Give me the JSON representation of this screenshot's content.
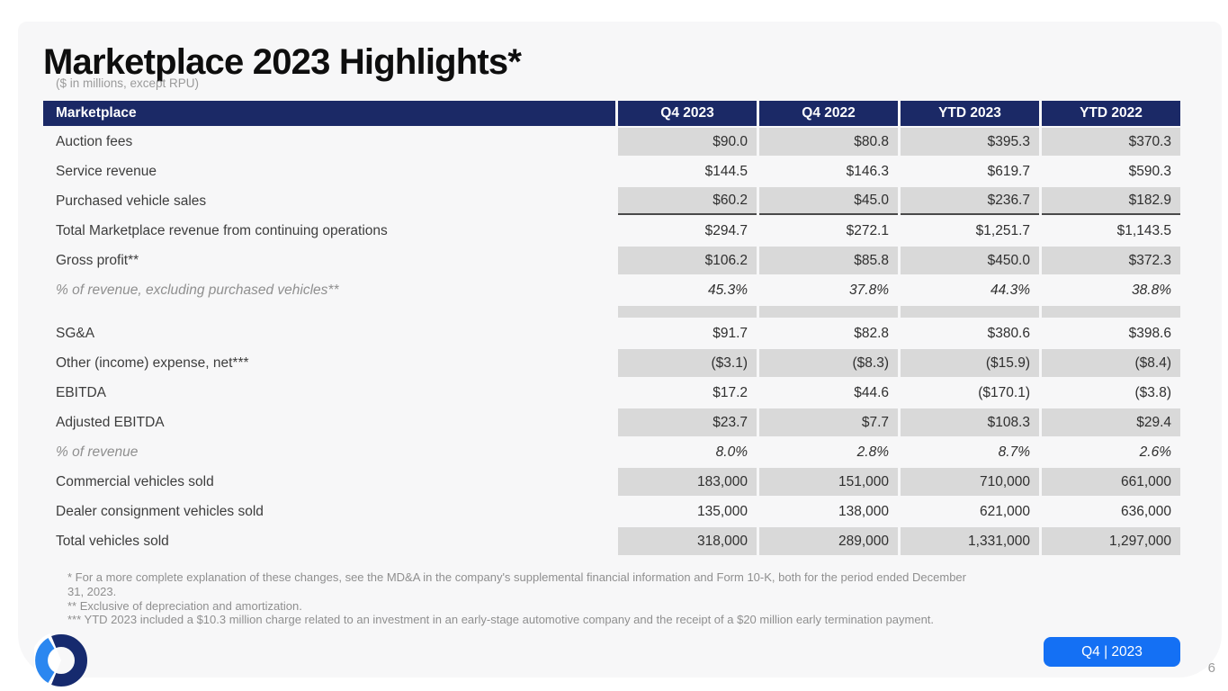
{
  "slide": {
    "title": "Marketplace 2023 Highlights*",
    "subtitle": "($ in millions, except RPU)",
    "badge_label": "Q4 | 2023",
    "page_number": "6",
    "logo": "ring-logo"
  },
  "table": {
    "header": {
      "label": "Marketplace",
      "columns": [
        "Q4 2023",
        "Q4 2022",
        "YTD 2023",
        "YTD 2022"
      ]
    },
    "rows": [
      {
        "label": "Auction fees",
        "values": [
          "$90.0",
          "$80.8",
          "$395.3",
          "$370.3"
        ],
        "shaded": true
      },
      {
        "label": "Service revenue",
        "values": [
          "$144.5",
          "$146.3",
          "$619.7",
          "$590.3"
        ],
        "shaded": false
      },
      {
        "label": "Purchased vehicle sales",
        "values": [
          "$60.2",
          "$45.0",
          "$236.7",
          "$182.9"
        ],
        "shaded": true,
        "subtotal_rule": true
      },
      {
        "label": "Total Marketplace revenue from continuing operations",
        "values": [
          "$294.7",
          "$272.1",
          "$1,251.7",
          "$1,143.5"
        ],
        "shaded": false
      },
      {
        "label": "Gross profit**",
        "values": [
          "$106.2",
          "$85.8",
          "$450.0",
          "$372.3"
        ],
        "shaded": true
      },
      {
        "label": "% of revenue, excluding purchased vehicles**",
        "values": [
          "45.3%",
          "37.8%",
          "44.3%",
          "38.8%"
        ],
        "shaded": false,
        "italic": true
      },
      {
        "label": "",
        "values": [
          "",
          "",
          "",
          ""
        ],
        "shaded": true,
        "spacer": true
      },
      {
        "label": "SG&A",
        "values": [
          "$91.7",
          "$82.8",
          "$380.6",
          "$398.6"
        ],
        "shaded": false
      },
      {
        "label": "Other (income) expense, net***",
        "values": [
          "($3.1)",
          "($8.3)",
          "($15.9)",
          "($8.4)"
        ],
        "shaded": true
      },
      {
        "label": "EBITDA",
        "values": [
          "$17.2",
          "$44.6",
          "($170.1)",
          "($3.8)"
        ],
        "shaded": false
      },
      {
        "label": "Adjusted EBITDA",
        "values": [
          "$23.7",
          "$7.7",
          "$108.3",
          "$29.4"
        ],
        "shaded": true
      },
      {
        "label": "% of revenue",
        "values": [
          "8.0%",
          "2.8%",
          "8.7%",
          "2.6%"
        ],
        "shaded": false,
        "italic": true
      },
      {
        "label": "Commercial vehicles sold",
        "values": [
          "183,000",
          "151,000",
          "710,000",
          "661,000"
        ],
        "shaded": true
      },
      {
        "label": "Dealer consignment vehicles sold",
        "values": [
          "135,000",
          "138,000",
          "621,000",
          "636,000"
        ],
        "shaded": false
      },
      {
        "label": "Total vehicles sold",
        "values": [
          "318,000",
          "289,000",
          "1,331,000",
          "1,297,000"
        ],
        "shaded": true
      }
    ]
  },
  "footnotes": [
    "* For a more complete explanation of these changes, see the MD&A in the company's supplemental financial information and Form 10-K, both for the period ended December\n31, 2023.",
    "** Exclusive of depreciation and amortization.",
    "*** YTD 2023 included a $10.3 million charge related to an investment in an early-stage automotive company and the receipt of a $20 million early termination payment."
  ],
  "colors": {
    "header_navy": "#1b2966",
    "row_shade_gray": "#d9d9d9",
    "badge_blue": "#1470f4",
    "logo_navy": "#162a6e",
    "logo_blue": "#2b87f0",
    "panel_background": "#f7f7f8"
  }
}
